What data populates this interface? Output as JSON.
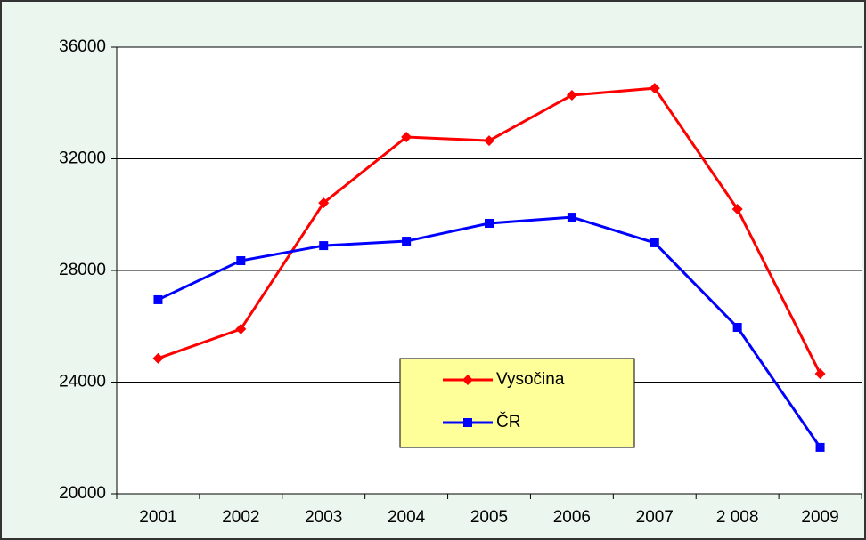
{
  "chart_data": {
    "type": "line",
    "categories": [
      "2001",
      "2002",
      "2003",
      "2004",
      "2005",
      "2006",
      "2007",
      "2 008",
      "2009"
    ],
    "series": [
      {
        "name": "Vysočina",
        "color": "#ff0000",
        "marker": "diamond",
        "values": [
          24850,
          25900,
          30420,
          32780,
          32650,
          34280,
          34530,
          30200,
          24300
        ]
      },
      {
        "name": "ČR",
        "color": "#0000ff",
        "marker": "square",
        "values": [
          26950,
          28350,
          28890,
          29050,
          29690,
          29910,
          28990,
          25960,
          21660
        ]
      }
    ],
    "ylim": [
      20000,
      36000
    ],
    "yticks": [
      20000,
      24000,
      28000,
      32000,
      36000
    ],
    "grid": true
  }
}
